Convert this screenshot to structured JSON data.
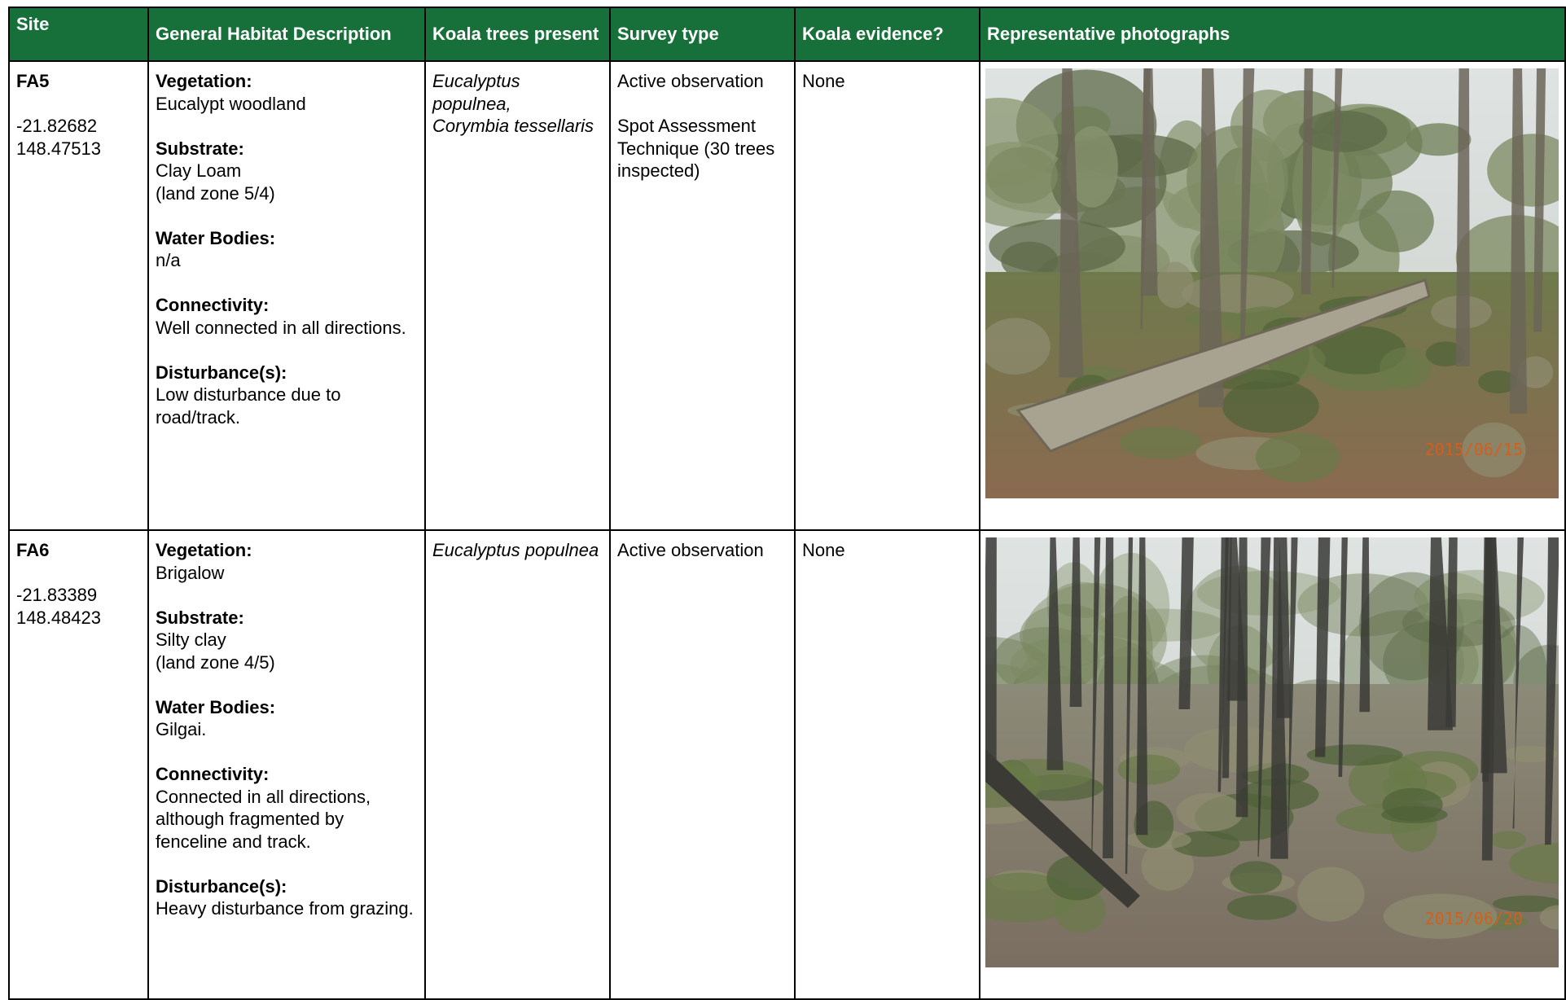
{
  "table": {
    "columns": [
      "Site",
      "General Habitat Description",
      "Koala trees present",
      "Survey type",
      "Koala evidence?",
      "Representative photographs"
    ],
    "rows": [
      {
        "site": "FA5",
        "coords": [
          "-21.82682",
          "148.47513"
        ],
        "habitat": [
          {
            "label": "Vegetation:",
            "lines": [
              "Eucalypt woodland"
            ]
          },
          {
            "label": "Substrate:",
            "lines": [
              "Clay Loam",
              "(land zone 5/4)"
            ]
          },
          {
            "label": "Water Bodies:",
            "lines": [
              "n/a"
            ]
          },
          {
            "label": "Connectivity:",
            "lines": [
              "Well connected in all directions."
            ]
          },
          {
            "label": "Disturbance(s):",
            "lines": [
              "Low disturbance due to road/track."
            ]
          }
        ],
        "trees": [
          "Eucalyptus populnea,",
          "Corymbia tessellaris"
        ],
        "survey": [
          "Active observation",
          "Spot Assessment Technique (30 trees inspected)"
        ],
        "evidence": "None",
        "photo_date": "2015/06/15"
      },
      {
        "site": "FA6",
        "coords": [
          "-21.83389",
          "148.48423"
        ],
        "habitat": [
          {
            "label": "Vegetation:",
            "lines": [
              "Brigalow"
            ]
          },
          {
            "label": "Substrate:",
            "lines": [
              "Silty clay",
              "(land zone 4/5)"
            ]
          },
          {
            "label": "Water Bodies:",
            "lines": [
              "Gilgai."
            ]
          },
          {
            "label": "Connectivity:",
            "lines": [
              "Connected in all directions, although fragmented by fenceline and track."
            ]
          },
          {
            "label": "Disturbance(s):",
            "lines": [
              "Heavy disturbance from grazing."
            ]
          }
        ],
        "trees": [
          "Eucalyptus populnea"
        ],
        "survey": [
          "Active observation"
        ],
        "evidence": "None",
        "photo_date": "2015/06/20"
      }
    ]
  }
}
